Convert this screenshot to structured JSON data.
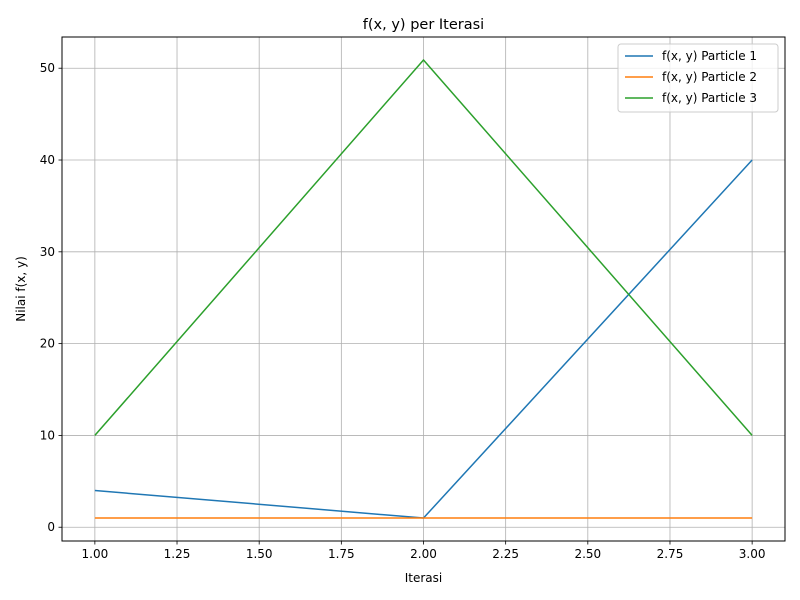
{
  "chart_data": {
    "type": "line",
    "title": "f(x, y) per Iterasi",
    "xlabel": "Iterasi",
    "ylabel": "Nilai f(x, y)",
    "xlim": [
      0.9,
      3.1
    ],
    "ylim": [
      -1.5,
      53.4
    ],
    "xticks": [
      1.0,
      1.25,
      1.5,
      1.75,
      2.0,
      2.25,
      2.5,
      2.75,
      3.0
    ],
    "xtick_labels": [
      "1.00",
      "1.25",
      "1.50",
      "1.75",
      "2.00",
      "2.25",
      "2.50",
      "2.75",
      "3.00"
    ],
    "yticks": [
      0,
      10,
      20,
      30,
      40,
      50
    ],
    "ytick_labels": [
      "0",
      "10",
      "20",
      "30",
      "40",
      "50"
    ],
    "grid": true,
    "legend_position": "top-right",
    "x": [
      1,
      2,
      3
    ],
    "series": [
      {
        "name": "f(x, y) Particle 1",
        "color": "#1f77b4",
        "values": [
          4,
          1,
          40
        ]
      },
      {
        "name": "f(x, y) Particle 2",
        "color": "#ff7f0e",
        "values": [
          1,
          1,
          1
        ]
      },
      {
        "name": "f(x, y) Particle 3",
        "color": "#2ca02c",
        "values": [
          10,
          50.9,
          10
        ]
      }
    ]
  }
}
